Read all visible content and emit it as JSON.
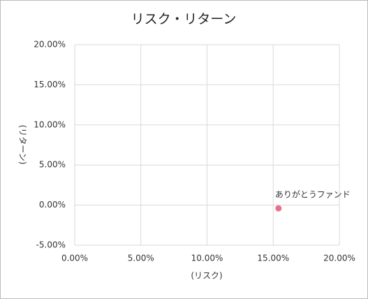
{
  "chart_data": {
    "type": "scatter",
    "title": "リスク・リターン",
    "x_label": "(リスク)",
    "y_label": "(リターン)",
    "series": [
      {
        "name": "ありがとうファンド",
        "color": "#e8708a",
        "x": [
          15.4
        ],
        "values": [
          -0.4
        ]
      }
    ],
    "xlim": [
      0,
      20
    ],
    "xticks": [
      {
        "value": 0,
        "label": "0.00%"
      },
      {
        "value": 5,
        "label": "5.00%"
      },
      {
        "value": 10,
        "label": "10.00%"
      },
      {
        "value": 15,
        "label": "15.00%"
      },
      {
        "value": 20,
        "label": "20.00%"
      }
    ],
    "ylim": [
      -5,
      20
    ],
    "yticks": [
      {
        "value": -5,
        "label": "-5.00%"
      },
      {
        "value": 0,
        "label": "0.00%"
      },
      {
        "value": 5,
        "label": "5.00%"
      },
      {
        "value": 10,
        "label": "10.00%"
      },
      {
        "value": 15,
        "label": "15.00%"
      },
      {
        "value": 20,
        "label": "20.00%"
      }
    ],
    "grid": true
  }
}
